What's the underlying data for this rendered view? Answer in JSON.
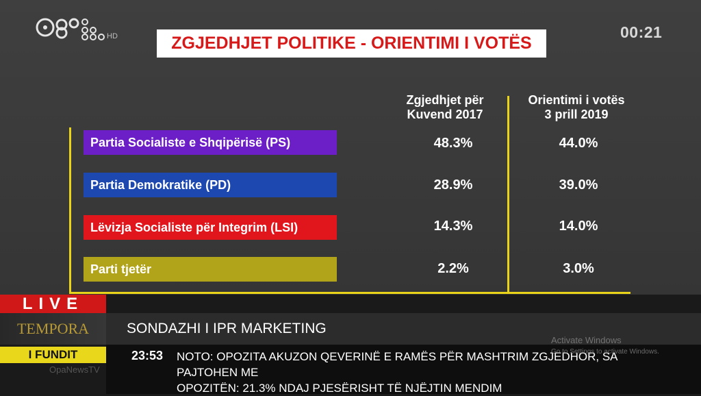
{
  "channel": {
    "clock": "00:21",
    "logo_icon": "channel-logo-hd"
  },
  "title": "ZGJEDHJET POLITIKE - ORIENTIMI I VOTËS",
  "table": {
    "col1_header_line1": "Zgjedhjet për",
    "col1_header_line2": "Kuvend 2017",
    "col2_header_line1": "Orientimi i votës",
    "col2_header_line2": "3 prill 2019",
    "rows": [
      {
        "party": "Partia Socialiste e Shqipërisë (PS)",
        "v2017": "48.3%",
        "v2019": "44.0%",
        "color": "#6c1fc7"
      },
      {
        "party": "Partia Demokratike (PD)",
        "v2017": "28.9%",
        "v2019": "39.0%",
        "color": "#1c48b0"
      },
      {
        "party": "Lëvizja Socialiste për Integrim (LSI)",
        "v2017": "14.3%",
        "v2019": "14.0%",
        "color": "#e1161d"
      },
      {
        "party": "Parti tjetër",
        "v2017": "2.2%",
        "v2019": "3.0%",
        "color": "#b1a41a"
      }
    ],
    "line_color": "#e9d419"
  },
  "lower_third": {
    "live": "LIVE",
    "program": "TEMPORA",
    "headline": "SONDAZHI I IPR MARKETING",
    "fundit": "I FUNDIT",
    "ticker_time": "23:53",
    "ticker_text_1": "NOTO: OPOZITA AKUZON QEVERINË E RAMËS PËR MASHTRIM ZGJEDHOR, SA PAJTOHEN ME",
    "ticker_text_2": "OPOZITËN: 21.3% NDAJ PJESËRISHT TË NJËJTIN MENDIM",
    "ticker_source": "OpaNewsTV"
  },
  "os_watermark": {
    "line1": "Activate Windows",
    "line2": "Go to Settings to activate Windows."
  }
}
